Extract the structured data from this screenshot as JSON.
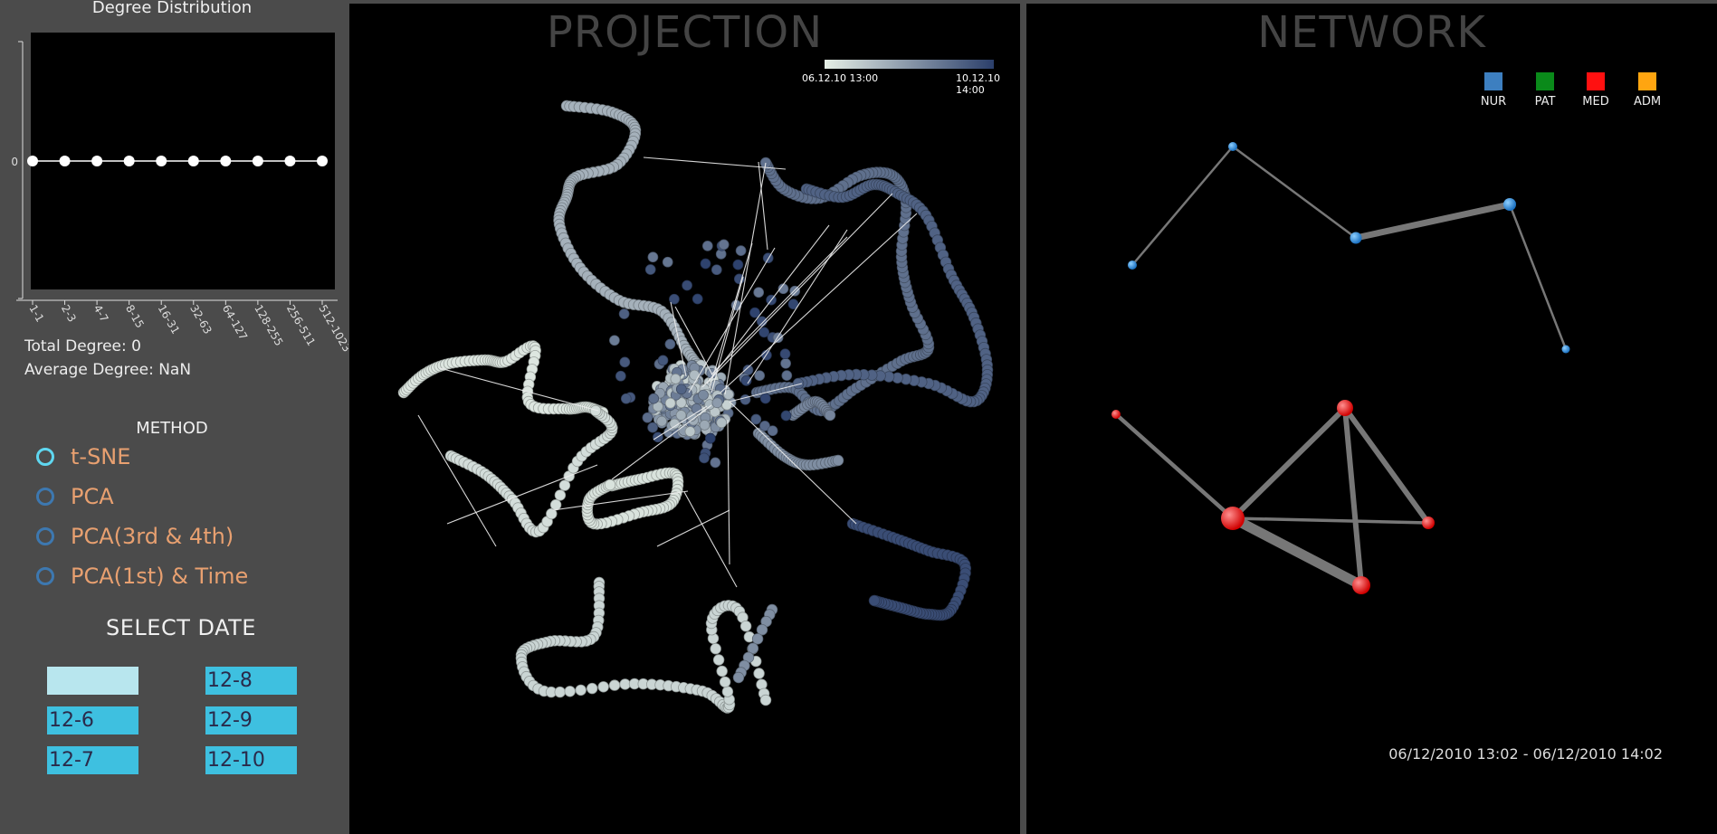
{
  "sidebar": {
    "degree": {
      "title": "Degree Distribution",
      "y_tick": "0",
      "bins": [
        "1-1",
        "2-3",
        "4-7",
        "8-15",
        "16-31",
        "32-63",
        "64-127",
        "128-255",
        "256-511",
        "512-1023"
      ],
      "values": [
        0,
        0,
        0,
        0,
        0,
        0,
        0,
        0,
        0,
        0
      ]
    },
    "total_degree": "Total Degree: 0",
    "average_degree": "Average Degree: NaN",
    "method": {
      "title": "METHOD",
      "options": [
        "t-SNE",
        "PCA",
        "PCA(3rd & 4th)",
        "PCA(1st) & Time"
      ],
      "selected": "t-SNE"
    },
    "select_date": {
      "title": "SELECT DATE",
      "buttons": [
        "",
        "12-8",
        "12-6",
        "12-9",
        "12-7",
        "12-10"
      ]
    }
  },
  "projection": {
    "title": "PROJECTION",
    "colorbar_start": "06.12.10 13:00",
    "colorbar_end": "10.12.10 14:00",
    "color_light": "#e6efe6",
    "color_dark": "#2b3f6b"
  },
  "network": {
    "title": "NETWORK",
    "legend": [
      {
        "label": "NUR",
        "color": "#3d7fc0"
      },
      {
        "label": "PAT",
        "color": "#0a8a1a"
      },
      {
        "label": "MED",
        "color": "#ff1010"
      },
      {
        "label": "ADM",
        "color": "#ffa510"
      }
    ],
    "time_range": "06/12/2010 13:02 - 06/12/2010 14:02"
  }
}
